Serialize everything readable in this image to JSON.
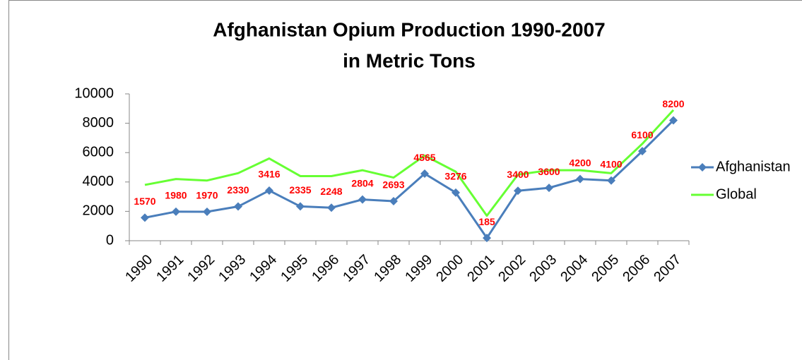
{
  "chart_data": {
    "type": "line",
    "title": "Afghanistan Opium Production 1990-2007",
    "subtitle": "in Metric Tons",
    "categories": [
      "1990",
      "1991",
      "1992",
      "1993",
      "1994",
      "1995",
      "1996",
      "1997",
      "1998",
      "1999",
      "2000",
      "2001",
      "2002",
      "2003",
      "2004",
      "2005",
      "2006",
      "2007"
    ],
    "series": [
      {
        "name": "Afghanistan",
        "color": "#4a7ebb",
        "marker": "diamond",
        "data_labels": true,
        "values": [
          1570,
          1980,
          1970,
          2330,
          3416,
          2335,
          2248,
          2804,
          2693,
          4565,
          3276,
          185,
          3400,
          3600,
          4200,
          4100,
          6100,
          8200
        ]
      },
      {
        "name": "Global",
        "color": "#66ff33",
        "marker": "none",
        "data_labels": false,
        "values": [
          3800,
          4200,
          4100,
          4600,
          5600,
          4400,
          4400,
          4800,
          4300,
          5800,
          4700,
          1700,
          4500,
          4800,
          4800,
          4600,
          6600,
          8900
        ]
      }
    ],
    "ylim": [
      0,
      10000
    ],
    "yticks": [
      0,
      2000,
      4000,
      6000,
      8000,
      10000
    ],
    "grid": false,
    "legend": "right",
    "data_label_color": "#ff0000"
  }
}
